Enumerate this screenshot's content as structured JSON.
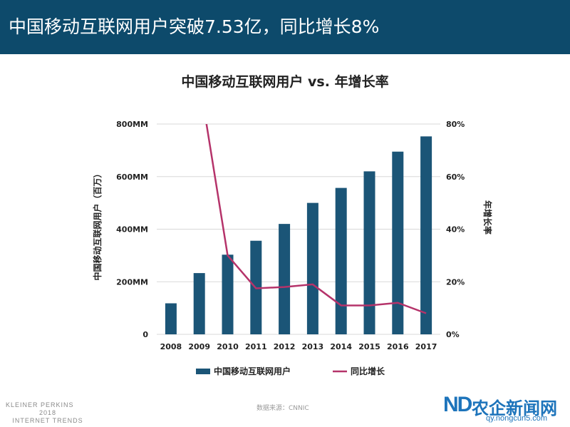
{
  "header": {
    "title": "中国移动互联网用户突破7.53亿，同比增长8%"
  },
  "chart_data": {
    "type": "bar+line",
    "title": "中国移动互联网用户 vs. 年增长率",
    "categories": [
      "2008",
      "2009",
      "2010",
      "2011",
      "2012",
      "2013",
      "2014",
      "2015",
      "2016",
      "2017"
    ],
    "series": [
      {
        "name": "中国移动互联网用户",
        "type": "bar",
        "axis": "left",
        "values": [
          118,
          233,
          303,
          356,
          420,
          500,
          557,
          620,
          695,
          753
        ]
      },
      {
        "name": "同比增长",
        "type": "line",
        "axis": "right",
        "values": [
          null,
          97,
          30,
          17.5,
          18,
          19,
          11,
          11,
          12,
          8
        ]
      }
    ],
    "ylabel_left": "中国移动互联网用户（百万）",
    "ylabel_right": "年增长率",
    "yticks_left": [
      "0",
      "200MM",
      "400MM",
      "600MM",
      "800MM"
    ],
    "yticks_right": [
      "0%",
      "20%",
      "40%",
      "60%",
      "80%"
    ],
    "ylim_left": [
      0,
      800
    ],
    "ylim_right": [
      0,
      80
    ],
    "legend": "bottom",
    "colors": {
      "bar": "#1b5577",
      "line": "#b5336a"
    }
  },
  "footer": {
    "brand_lines": [
      "KLEINER PERKINS",
      "2018",
      "INTERNET TRENDS"
    ],
    "source": "数据来源：CNNIC"
  },
  "watermark": {
    "mark": "ND",
    "name": "农企新闻网",
    "url": "qy.nongcun5.com"
  }
}
